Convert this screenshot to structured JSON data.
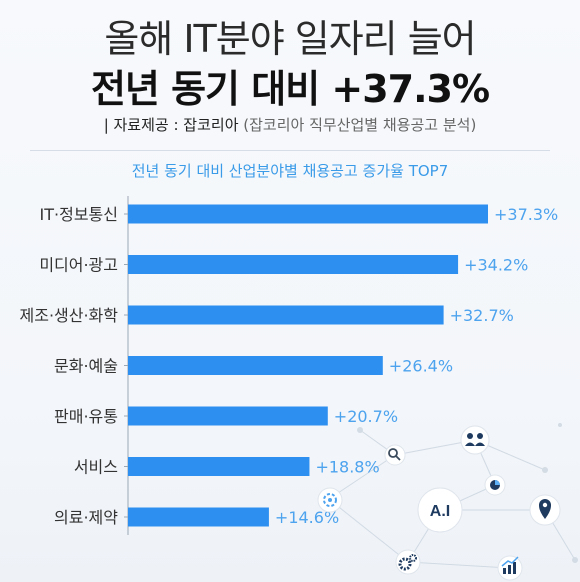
{
  "header": {
    "title_line1": "올해 IT분야 일자리 늘어",
    "title_line2": "전년 동기 대비 +37.3%",
    "source_label": "| 자료제공 : 잡코리아",
    "source_detail": "(잡코리아 직무산업별 채용공고 분석)"
  },
  "chart_data": {
    "type": "bar",
    "orientation": "horizontal",
    "title": "전년 동기 대비 산업분야별 채용공고 증가율 TOP7",
    "categories": [
      "IT·정보통신",
      "미디어·광고",
      "제조·생산·화학",
      "문화·예술",
      "판매·유통",
      "서비스",
      "의료·제약"
    ],
    "values": [
      37.3,
      34.2,
      32.7,
      26.4,
      20.7,
      18.8,
      14.6
    ],
    "value_labels": [
      "+37.3%",
      "+34.2%",
      "+32.7%",
      "+26.4%",
      "+20.7%",
      "+18.8%",
      "+14.6%"
    ],
    "xlim": [
      0,
      37.3
    ],
    "bar_color": "#2d8ff0",
    "label_color": "#4da3ee",
    "grid": false,
    "legend": "none"
  },
  "decor": {
    "icons": [
      "search-icon",
      "people-icon",
      "pie-chart-icon",
      "location-pin-icon",
      "gear-icon",
      "cog-icon",
      "growth-chart-icon"
    ],
    "badge_text": "A.I"
  }
}
